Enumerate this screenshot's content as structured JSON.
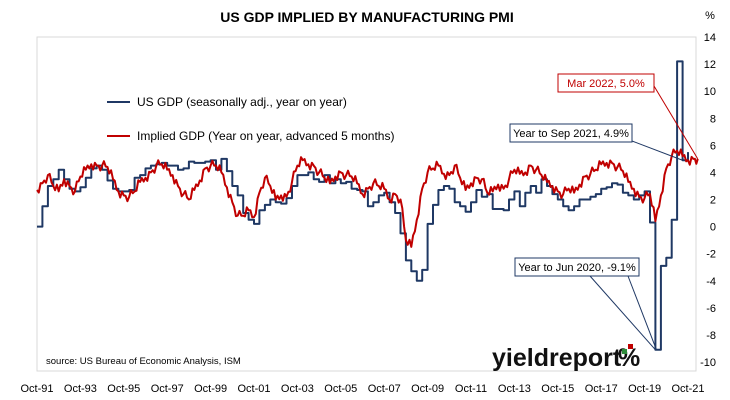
{
  "chart_data": {
    "type": "line",
    "title": "US GDP IMPLIED BY MANUFACTURING PMI",
    "y_unit_label": "%",
    "ylim": [
      -10,
      14
    ],
    "y_ticks": [
      14,
      12,
      10,
      8,
      6,
      4,
      2,
      0,
      -2,
      -4,
      -6,
      -8,
      -10
    ],
    "x_ticks": [
      "Oct-91",
      "Oct-93",
      "Oct-95",
      "Oct-97",
      "Oct-99",
      "Oct-01",
      "Oct-03",
      "Oct-05",
      "Oct-07",
      "Oct-09",
      "Oct-11",
      "Oct-13",
      "Oct-15",
      "Oct-17",
      "Oct-19",
      "Oct-21"
    ],
    "grid": false,
    "legend_position": "top-left",
    "series": [
      {
        "name": "US GDP (seasonally adj., year on year)",
        "color": "#1F3864",
        "step": "quarterly",
        "points": [
          [
            1991.75,
            0.0
          ],
          [
            1992.0,
            1.5
          ],
          [
            1992.25,
            3.0
          ],
          [
            1992.5,
            3.5
          ],
          [
            1992.75,
            4.2
          ],
          [
            1993.0,
            3.5
          ],
          [
            1993.25,
            2.8
          ],
          [
            1993.5,
            2.6
          ],
          [
            1993.75,
            2.9
          ],
          [
            1994.0,
            3.6
          ],
          [
            1994.25,
            4.3
          ],
          [
            1994.5,
            4.5
          ],
          [
            1994.75,
            4.2
          ],
          [
            1995.0,
            3.4
          ],
          [
            1995.25,
            2.8
          ],
          [
            1995.5,
            2.6
          ],
          [
            1995.75,
            2.6
          ],
          [
            1996.0,
            2.7
          ],
          [
            1996.25,
            3.6
          ],
          [
            1996.5,
            3.8
          ],
          [
            1996.75,
            4.3
          ],
          [
            1997.0,
            4.5
          ],
          [
            1997.25,
            4.6
          ],
          [
            1997.5,
            4.7
          ],
          [
            1997.75,
            4.5
          ],
          [
            1998.0,
            4.5
          ],
          [
            1998.25,
            4.2
          ],
          [
            1998.5,
            4.3
          ],
          [
            1998.75,
            4.8
          ],
          [
            1999.0,
            4.7
          ],
          [
            1999.25,
            4.7
          ],
          [
            1999.5,
            4.8
          ],
          [
            1999.75,
            4.9
          ],
          [
            2000.0,
            4.2
          ],
          [
            2000.25,
            5.0
          ],
          [
            2000.5,
            4.1
          ],
          [
            2000.75,
            3.0
          ],
          [
            2001.0,
            2.3
          ],
          [
            2001.25,
            1.0
          ],
          [
            2001.5,
            0.5
          ],
          [
            2001.75,
            0.2
          ],
          [
            2002.0,
            1.2
          ],
          [
            2002.25,
            1.6
          ],
          [
            2002.5,
            2.0
          ],
          [
            2002.75,
            1.8
          ],
          [
            2003.0,
            1.7
          ],
          [
            2003.25,
            2.1
          ],
          [
            2003.5,
            3.0
          ],
          [
            2003.75,
            3.8
          ],
          [
            2004.0,
            3.8
          ],
          [
            2004.25,
            4.0
          ],
          [
            2004.5,
            3.5
          ],
          [
            2004.75,
            3.3
          ],
          [
            2005.0,
            3.8
          ],
          [
            2005.25,
            3.2
          ],
          [
            2005.5,
            3.5
          ],
          [
            2005.75,
            3.2
          ],
          [
            2006.0,
            3.3
          ],
          [
            2006.25,
            2.8
          ],
          [
            2006.5,
            2.7
          ],
          [
            2006.75,
            2.6
          ],
          [
            2007.0,
            1.5
          ],
          [
            2007.25,
            1.8
          ],
          [
            2007.5,
            2.3
          ],
          [
            2007.75,
            2.5
          ],
          [
            2008.0,
            1.8
          ],
          [
            2008.25,
            1.0
          ],
          [
            2008.5,
            -0.5
          ],
          [
            2008.75,
            -2.5
          ],
          [
            2009.0,
            -3.3
          ],
          [
            2009.25,
            -4.0
          ],
          [
            2009.5,
            -3.2
          ],
          [
            2009.75,
            0.2
          ],
          [
            2010.0,
            1.6
          ],
          [
            2010.25,
            2.7
          ],
          [
            2010.5,
            3.0
          ],
          [
            2010.75,
            2.8
          ],
          [
            2011.0,
            1.8
          ],
          [
            2011.25,
            1.5
          ],
          [
            2011.5,
            1.1
          ],
          [
            2011.75,
            1.8
          ],
          [
            2012.0,
            2.7
          ],
          [
            2012.25,
            2.2
          ],
          [
            2012.5,
            2.4
          ],
          [
            2012.75,
            1.3
          ],
          [
            2013.0,
            1.3
          ],
          [
            2013.25,
            1.2
          ],
          [
            2013.5,
            2.0
          ],
          [
            2013.75,
            2.6
          ],
          [
            2014.0,
            1.5
          ],
          [
            2014.25,
            2.5
          ],
          [
            2014.5,
            3.0
          ],
          [
            2014.75,
            2.5
          ],
          [
            2015.0,
            3.5
          ],
          [
            2015.25,
            3.0
          ],
          [
            2015.5,
            2.4
          ],
          [
            2015.75,
            2.0
          ],
          [
            2016.0,
            1.5
          ],
          [
            2016.25,
            1.2
          ],
          [
            2016.5,
            1.5
          ],
          [
            2016.75,
            2.0
          ],
          [
            2017.0,
            2.0
          ],
          [
            2017.25,
            2.2
          ],
          [
            2017.5,
            2.4
          ],
          [
            2017.75,
            2.8
          ],
          [
            2018.0,
            2.9
          ],
          [
            2018.25,
            3.2
          ],
          [
            2018.5,
            3.1
          ],
          [
            2018.75,
            2.5
          ],
          [
            2019.0,
            2.3
          ],
          [
            2019.25,
            2.0
          ],
          [
            2019.5,
            2.3
          ],
          [
            2019.75,
            2.6
          ],
          [
            2020.0,
            0.3
          ],
          [
            2020.25,
            -9.1
          ],
          [
            2020.5,
            -2.9
          ],
          [
            2020.75,
            -2.3
          ],
          [
            2021.0,
            0.5
          ],
          [
            2021.25,
            12.2
          ],
          [
            2021.5,
            4.9
          ],
          [
            2021.75,
            5.5
          ]
        ]
      },
      {
        "name": "Implied GDP (Year on year, advanced 5 months)",
        "color": "#C00000",
        "step": "monthly",
        "points": [
          [
            1991.75,
            2.7
          ],
          [
            1992.0,
            3.2
          ],
          [
            1992.25,
            3.8
          ],
          [
            1992.5,
            3.0
          ],
          [
            1992.75,
            2.6
          ],
          [
            1993.0,
            3.5
          ],
          [
            1993.25,
            3.0
          ],
          [
            1993.5,
            2.6
          ],
          [
            1993.75,
            3.7
          ],
          [
            1994.0,
            4.2
          ],
          [
            1994.25,
            4.6
          ],
          [
            1994.5,
            4.5
          ],
          [
            1994.75,
            4.5
          ],
          [
            1995.0,
            4.4
          ],
          [
            1995.25,
            3.5
          ],
          [
            1995.5,
            2.6
          ],
          [
            1995.75,
            2.3
          ],
          [
            1996.0,
            2.2
          ],
          [
            1996.25,
            2.6
          ],
          [
            1996.5,
            3.3
          ],
          [
            1996.75,
            3.6
          ],
          [
            1997.0,
            4.0
          ],
          [
            1997.25,
            4.5
          ],
          [
            1997.5,
            4.6
          ],
          [
            1997.75,
            4.2
          ],
          [
            1998.0,
            3.8
          ],
          [
            1998.25,
            3.0
          ],
          [
            1998.5,
            2.4
          ],
          [
            1998.75,
            2.0
          ],
          [
            1999.0,
            2.7
          ],
          [
            1999.25,
            3.4
          ],
          [
            1999.5,
            4.3
          ],
          [
            1999.75,
            4.5
          ],
          [
            2000.0,
            4.5
          ],
          [
            2000.25,
            4.0
          ],
          [
            2000.5,
            2.9
          ],
          [
            2000.75,
            1.8
          ],
          [
            2001.0,
            0.8
          ],
          [
            2001.25,
            0.8
          ],
          [
            2001.5,
            1.2
          ],
          [
            2001.75,
            0.7
          ],
          [
            2002.0,
            2.5
          ],
          [
            2002.25,
            3.6
          ],
          [
            2002.5,
            3.0
          ],
          [
            2002.75,
            2.0
          ],
          [
            2003.0,
            2.3
          ],
          [
            2003.25,
            2.2
          ],
          [
            2003.5,
            3.3
          ],
          [
            2003.75,
            4.5
          ],
          [
            2004.0,
            4.9
          ],
          [
            2004.25,
            4.6
          ],
          [
            2004.5,
            4.5
          ],
          [
            2004.75,
            4.0
          ],
          [
            2005.0,
            3.6
          ],
          [
            2005.25,
            3.2
          ],
          [
            2005.5,
            3.7
          ],
          [
            2005.75,
            4.0
          ],
          [
            2006.0,
            3.8
          ],
          [
            2006.25,
            3.7
          ],
          [
            2006.5,
            3.2
          ],
          [
            2006.75,
            2.4
          ],
          [
            2007.0,
            2.8
          ],
          [
            2007.25,
            3.2
          ],
          [
            2007.5,
            3.0
          ],
          [
            2007.75,
            2.8
          ],
          [
            2008.0,
            2.0
          ],
          [
            2008.25,
            2.4
          ],
          [
            2008.5,
            2.0
          ],
          [
            2008.75,
            -1.0
          ],
          [
            2009.0,
            -1.5
          ],
          [
            2009.25,
            0.5
          ],
          [
            2009.5,
            2.8
          ],
          [
            2009.75,
            4.0
          ],
          [
            2010.0,
            4.3
          ],
          [
            2010.25,
            4.5
          ],
          [
            2010.5,
            3.9
          ],
          [
            2010.75,
            3.8
          ],
          [
            2011.0,
            4.5
          ],
          [
            2011.25,
            3.6
          ],
          [
            2011.5,
            2.7
          ],
          [
            2011.75,
            3.2
          ],
          [
            2012.0,
            3.6
          ],
          [
            2012.25,
            3.5
          ],
          [
            2012.5,
            2.5
          ],
          [
            2012.75,
            2.6
          ],
          [
            2013.0,
            3.1
          ],
          [
            2013.25,
            2.8
          ],
          [
            2013.5,
            3.5
          ],
          [
            2013.75,
            4.2
          ],
          [
            2014.0,
            3.9
          ],
          [
            2014.25,
            4.0
          ],
          [
            2014.5,
            4.5
          ],
          [
            2014.75,
            4.2
          ],
          [
            2015.0,
            3.8
          ],
          [
            2015.25,
            3.3
          ],
          [
            2015.5,
            3.0
          ],
          [
            2015.75,
            2.6
          ],
          [
            2016.0,
            2.4
          ],
          [
            2016.25,
            2.8
          ],
          [
            2016.5,
            2.5
          ],
          [
            2016.75,
            3.1
          ],
          [
            2017.0,
            3.7
          ],
          [
            2017.25,
            3.9
          ],
          [
            2017.5,
            4.2
          ],
          [
            2017.75,
            4.6
          ],
          [
            2018.0,
            4.7
          ],
          [
            2018.25,
            4.7
          ],
          [
            2018.5,
            4.4
          ],
          [
            2018.75,
            4.1
          ],
          [
            2019.0,
            3.3
          ],
          [
            2019.25,
            2.8
          ],
          [
            2019.5,
            2.2
          ],
          [
            2019.75,
            2.1
          ],
          [
            2020.0,
            2.4
          ],
          [
            2020.25,
            0.4
          ],
          [
            2020.5,
            2.3
          ],
          [
            2020.75,
            4.3
          ],
          [
            2021.0,
            5.2
          ],
          [
            2021.25,
            5.6
          ],
          [
            2021.5,
            5.2
          ],
          [
            2021.75,
            4.9
          ],
          [
            2022.0,
            5.0
          ],
          [
            2022.2,
            5.0
          ]
        ]
      }
    ],
    "annotations": [
      {
        "text": "Mar 2022, 5.0%",
        "color": "#C00000",
        "target": [
          2022.2,
          5.0
        ]
      },
      {
        "text": "Year to Sep 2021, 4.9%",
        "color": "#1F3864",
        "target": [
          2021.5,
          4.9
        ]
      },
      {
        "text": "Year to Jun 2020, -9.1%",
        "color": "#1F3864",
        "target": [
          2020.25,
          -9.1
        ]
      }
    ],
    "source": "source: US Bureau of Economic Analysis, ISM",
    "brand_text": "yieldreport",
    "brand_symbol": "%"
  }
}
